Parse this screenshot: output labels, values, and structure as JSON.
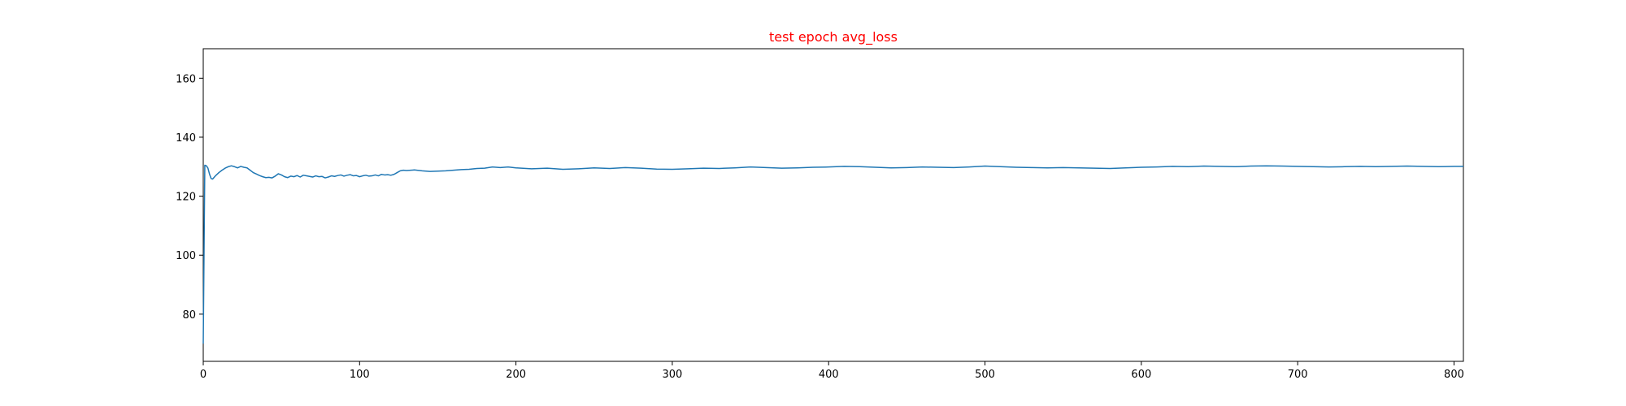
{
  "chart_data": {
    "type": "line",
    "title": "test epoch avg_loss",
    "title_color": "#ff0000",
    "xlabel": "",
    "ylabel": "",
    "xlim": [
      0,
      806
    ],
    "ylim": [
      64,
      170
    ],
    "xticks": [
      0,
      100,
      200,
      300,
      400,
      500,
      600,
      700,
      800
    ],
    "yticks": [
      80,
      100,
      120,
      140,
      160
    ],
    "grid": false,
    "legend": "none",
    "series": [
      {
        "color": "#1f77b4",
        "points": [
          [
            0,
            70
          ],
          [
            1,
            130.5
          ],
          [
            2,
            130.3
          ],
          [
            3,
            129.5
          ],
          [
            4,
            127.5
          ],
          [
            5,
            126.0
          ],
          [
            6,
            125.8
          ],
          [
            8,
            127.0
          ],
          [
            10,
            128.0
          ],
          [
            12,
            128.8
          ],
          [
            14,
            129.5
          ],
          [
            16,
            130.0
          ],
          [
            18,
            130.3
          ],
          [
            20,
            130.0
          ],
          [
            22,
            129.6
          ],
          [
            24,
            130.1
          ],
          [
            26,
            129.8
          ],
          [
            28,
            129.6
          ],
          [
            30,
            128.8
          ],
          [
            32,
            128.0
          ],
          [
            34,
            127.5
          ],
          [
            36,
            127.0
          ],
          [
            38,
            126.6
          ],
          [
            40,
            126.3
          ],
          [
            42,
            126.4
          ],
          [
            44,
            126.2
          ],
          [
            46,
            126.8
          ],
          [
            48,
            127.6
          ],
          [
            50,
            127.2
          ],
          [
            52,
            126.6
          ],
          [
            54,
            126.3
          ],
          [
            56,
            126.8
          ],
          [
            58,
            126.6
          ],
          [
            60,
            127.0
          ],
          [
            62,
            126.5
          ],
          [
            64,
            127.1
          ],
          [
            66,
            126.9
          ],
          [
            68,
            126.7
          ],
          [
            70,
            126.5
          ],
          [
            72,
            126.9
          ],
          [
            74,
            126.6
          ],
          [
            76,
            126.7
          ],
          [
            78,
            126.2
          ],
          [
            80,
            126.5
          ],
          [
            82,
            126.9
          ],
          [
            84,
            126.7
          ],
          [
            86,
            127.0
          ],
          [
            88,
            127.2
          ],
          [
            90,
            126.8
          ],
          [
            92,
            127.1
          ],
          [
            94,
            127.3
          ],
          [
            96,
            126.9
          ],
          [
            98,
            127.0
          ],
          [
            100,
            126.6
          ],
          [
            102,
            126.9
          ],
          [
            104,
            127.1
          ],
          [
            106,
            126.8
          ],
          [
            108,
            126.9
          ],
          [
            110,
            127.2
          ],
          [
            112,
            126.9
          ],
          [
            114,
            127.4
          ],
          [
            116,
            127.2
          ],
          [
            118,
            127.3
          ],
          [
            120,
            127.1
          ],
          [
            122,
            127.4
          ],
          [
            124,
            128.0
          ],
          [
            126,
            128.6
          ],
          [
            128,
            128.8
          ],
          [
            130,
            128.7
          ],
          [
            135,
            128.9
          ],
          [
            140,
            128.6
          ],
          [
            145,
            128.4
          ],
          [
            150,
            128.5
          ],
          [
            155,
            128.6
          ],
          [
            160,
            128.8
          ],
          [
            165,
            129.0
          ],
          [
            170,
            129.1
          ],
          [
            175,
            129.4
          ],
          [
            180,
            129.5
          ],
          [
            185,
            129.9
          ],
          [
            190,
            129.7
          ],
          [
            195,
            129.9
          ],
          [
            200,
            129.6
          ],
          [
            210,
            129.3
          ],
          [
            220,
            129.5
          ],
          [
            230,
            129.1
          ],
          [
            240,
            129.3
          ],
          [
            250,
            129.6
          ],
          [
            260,
            129.4
          ],
          [
            270,
            129.7
          ],
          [
            280,
            129.5
          ],
          [
            290,
            129.2
          ],
          [
            300,
            129.1
          ],
          [
            310,
            129.3
          ],
          [
            320,
            129.5
          ],
          [
            330,
            129.4
          ],
          [
            340,
            129.6
          ],
          [
            350,
            129.9
          ],
          [
            360,
            129.7
          ],
          [
            370,
            129.5
          ],
          [
            380,
            129.6
          ],
          [
            390,
            129.8
          ],
          [
            400,
            129.9
          ],
          [
            410,
            130.1
          ],
          [
            420,
            130.0
          ],
          [
            430,
            129.8
          ],
          [
            440,
            129.6
          ],
          [
            450,
            129.7
          ],
          [
            460,
            129.9
          ],
          [
            470,
            129.8
          ],
          [
            480,
            129.7
          ],
          [
            490,
            129.9
          ],
          [
            500,
            130.2
          ],
          [
            510,
            130.0
          ],
          [
            520,
            129.8
          ],
          [
            530,
            129.7
          ],
          [
            540,
            129.6
          ],
          [
            550,
            129.7
          ],
          [
            560,
            129.6
          ],
          [
            570,
            129.5
          ],
          [
            580,
            129.4
          ],
          [
            590,
            129.6
          ],
          [
            600,
            129.8
          ],
          [
            610,
            129.9
          ],
          [
            620,
            130.1
          ],
          [
            630,
            130.0
          ],
          [
            640,
            130.2
          ],
          [
            650,
            130.1
          ],
          [
            660,
            130.0
          ],
          [
            670,
            130.2
          ],
          [
            680,
            130.3
          ],
          [
            690,
            130.2
          ],
          [
            700,
            130.1
          ],
          [
            710,
            130.0
          ],
          [
            720,
            129.9
          ],
          [
            730,
            130.0
          ],
          [
            740,
            130.1
          ],
          [
            750,
            130.0
          ],
          [
            760,
            130.1
          ],
          [
            770,
            130.2
          ],
          [
            780,
            130.1
          ],
          [
            790,
            130.0
          ],
          [
            800,
            130.1
          ],
          [
            806,
            130.1
          ]
        ]
      }
    ]
  }
}
